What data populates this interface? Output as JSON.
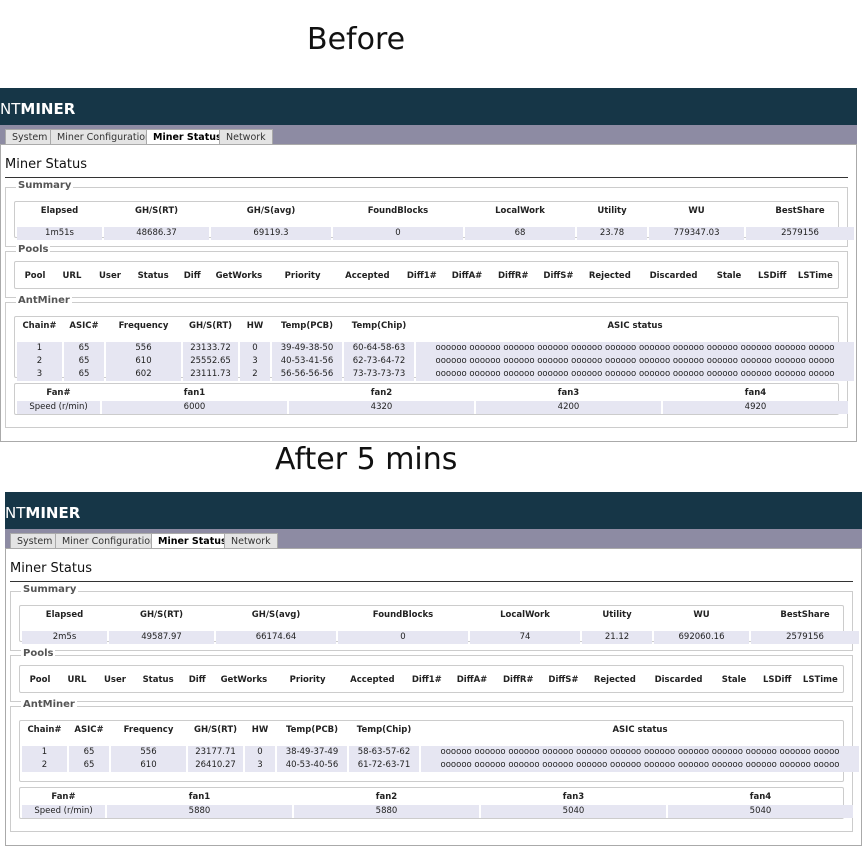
{
  "panels": [
    {
      "caption": "Before",
      "logo_thin": "NT",
      "logo_bold": "MINER",
      "tabs": [
        "System",
        "Miner Configuration",
        "Miner Status",
        "Network"
      ],
      "heading": "Miner Status",
      "summary": {
        "legend": "Summary",
        "headers": [
          "Elapsed",
          "GH/S(RT)",
          "GH/S(avg)",
          "FoundBlocks",
          "LocalWork",
          "Utility",
          "WU",
          "BestShare"
        ],
        "values": [
          "1m51s",
          "48686.37",
          "69119.3",
          "0",
          "68",
          "23.78",
          "779347.03",
          "2579156"
        ]
      },
      "pools": {
        "legend": "Pools",
        "headers": [
          "Pool",
          "URL",
          "User",
          "Status",
          "Diff",
          "GetWorks",
          "Priority",
          "Accepted",
          "Diff1#",
          "DiffA#",
          "DiffR#",
          "DiffS#",
          "Rejected",
          "Discarded",
          "Stale",
          "LSDiff",
          "LSTime"
        ]
      },
      "antminer": {
        "legend": "AntMiner",
        "chain_headers": [
          "Chain#",
          "ASIC#",
          "Frequency",
          "GH/S(RT)",
          "HW",
          "Temp(PCB)",
          "Temp(Chip)",
          "ASIC status"
        ],
        "chains": [
          [
            "1",
            "65",
            "556",
            "23133.72",
            "0",
            "39-49-38-50",
            "60-64-58-63",
            "oooooo oooooo oooooo oooooo oooooo oooooo oooooo oooooo oooooo oooooo oooooo ooooo"
          ],
          [
            "2",
            "65",
            "610",
            "25552.65",
            "3",
            "40-53-41-56",
            "62-73-64-72",
            "oooooo oooooo oooooo oooooo oooooo oooooo oooooo oooooo oooooo oooooo oooooo ooooo"
          ],
          [
            "3",
            "65",
            "602",
            "23111.73",
            "2",
            "56-56-56-56",
            "73-73-73-73",
            "oooooo oooooo oooooo oooooo oooooo oooooo oooooo oooooo oooooo oooooo oooooo ooooo"
          ]
        ],
        "fan_headers": [
          "Fan#",
          "fan1",
          "fan2",
          "fan3",
          "fan4"
        ],
        "fan_row": [
          "Speed (r/min)",
          "6000",
          "4320",
          "4200",
          "4920"
        ]
      }
    },
    {
      "caption": "After 5 mins",
      "logo_thin": "NT",
      "logo_bold": "MINER",
      "tabs": [
        "System",
        "Miner Configuration",
        "Miner Status",
        "Network"
      ],
      "heading": "Miner Status",
      "summary": {
        "legend": "Summary",
        "headers": [
          "Elapsed",
          "GH/S(RT)",
          "GH/S(avg)",
          "FoundBlocks",
          "LocalWork",
          "Utility",
          "WU",
          "BestShare"
        ],
        "values": [
          "2m5s",
          "49587.97",
          "66174.64",
          "0",
          "74",
          "21.12",
          "692060.16",
          "2579156"
        ]
      },
      "pools": {
        "legend": "Pools",
        "headers": [
          "Pool",
          "URL",
          "User",
          "Status",
          "Diff",
          "GetWorks",
          "Priority",
          "Accepted",
          "Diff1#",
          "DiffA#",
          "DiffR#",
          "DiffS#",
          "Rejected",
          "Discarded",
          "Stale",
          "LSDiff",
          "LSTime"
        ]
      },
      "antminer": {
        "legend": "AntMiner",
        "chain_headers": [
          "Chain#",
          "ASIC#",
          "Frequency",
          "GH/S(RT)",
          "HW",
          "Temp(PCB)",
          "Temp(Chip)",
          "ASIC status"
        ],
        "chains": [
          [
            "1",
            "65",
            "556",
            "23177.71",
            "0",
            "38-49-37-49",
            "58-63-57-62",
            "oooooo oooooo oooooo oooooo oooooo oooooo oooooo oooooo oooooo oooooo oooooo ooooo"
          ],
          [
            "2",
            "65",
            "610",
            "26410.27",
            "3",
            "40-53-40-56",
            "61-72-63-71",
            "oooooo oooooo oooooo oooooo oooooo oooooo oooooo oooooo oooooo oooooo oooooo ooooo"
          ]
        ],
        "fan_headers": [
          "Fan#",
          "fan1",
          "fan2",
          "fan3",
          "fan4"
        ],
        "fan_row": [
          "Speed (r/min)",
          "5880",
          "5880",
          "5040",
          "5040"
        ]
      }
    }
  ]
}
